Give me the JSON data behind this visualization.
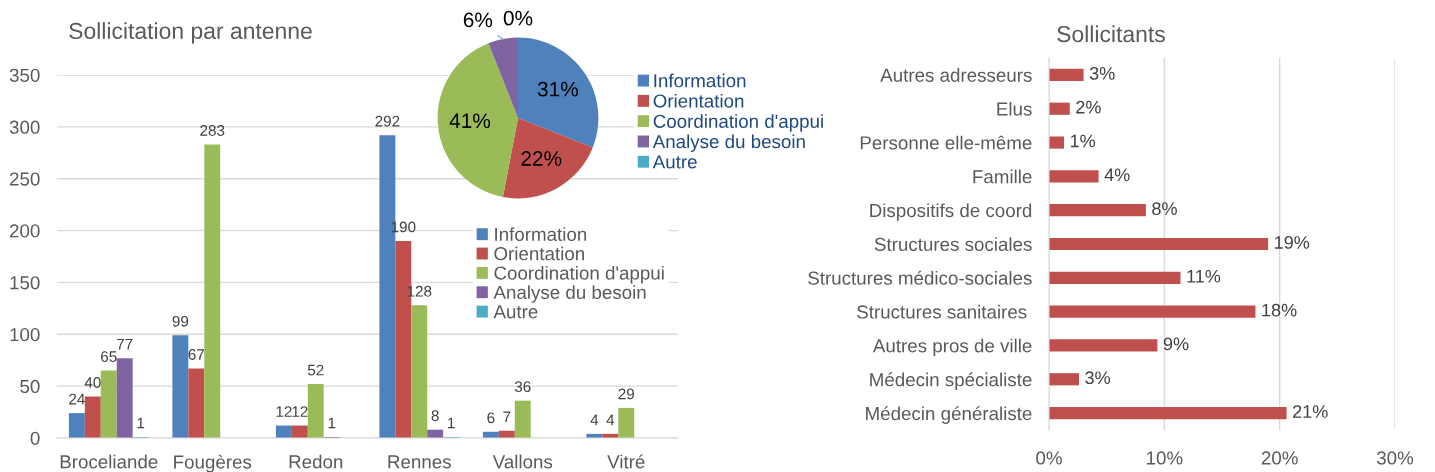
{
  "chart_data": [
    {
      "type": "bar",
      "title": "Sollicitation par antenne",
      "categories": [
        "Broceliande",
        "Fougères",
        "Redon",
        "Rennes",
        "Vallons",
        "Vitré"
      ],
      "series": [
        {
          "name": "Information",
          "color": "#4f81bd",
          "values": [
            24,
            99,
            12,
            292,
            6,
            4
          ]
        },
        {
          "name": "Orientation",
          "color": "#c0504d",
          "values": [
            40,
            67,
            12,
            190,
            7,
            4
          ]
        },
        {
          "name": "Coordination d'appui",
          "color": "#9bbb59",
          "values": [
            65,
            283,
            52,
            128,
            36,
            29
          ]
        },
        {
          "name": "Analyse du besoin",
          "color": "#8064a2",
          "values": [
            77,
            null,
            1,
            8,
            null,
            null
          ]
        },
        {
          "name": "Autre",
          "color": "#4bacc6",
          "values": [
            1,
            null,
            null,
            1,
            null,
            null
          ]
        }
      ],
      "ylim": [
        0,
        350
      ],
      "yticks": [
        0,
        50,
        100,
        150,
        200,
        250,
        300,
        350
      ],
      "grid": "y",
      "legend": "right",
      "data_labels": true
    },
    {
      "type": "pie",
      "categories": [
        "Information",
        "Orientation",
        "Coordination d'appui",
        "Analyse du besoin",
        "Autre"
      ],
      "values": [
        31,
        22,
        41,
        6,
        0
      ],
      "colors": [
        "#4f81bd",
        "#c0504d",
        "#9bbb59",
        "#8064a2",
        "#4bacc6"
      ],
      "value_labels": [
        "31%",
        "22%",
        "41%",
        "6%",
        "0%"
      ],
      "legend": "right"
    },
    {
      "type": "bar",
      "orientation": "horizontal",
      "title": "Sollicitants",
      "categories": [
        "Autres adresseurs",
        "Elus",
        "Personne elle-même",
        "Famille",
        "Dispositifs de coord",
        "Structures sociales",
        "Structures médico-sociales",
        "Structures sanitaires ",
        "Autres pros de ville",
        "Médecin spécialiste",
        "Médecin généraliste"
      ],
      "values": [
        3.0,
        1.8,
        1.3,
        4.3,
        8.4,
        19.0,
        11.4,
        17.9,
        9.4,
        2.6,
        20.6
      ],
      "color": "#c0504d",
      "value_labels": [
        "3%",
        "2%",
        "1%",
        "4%",
        "8%",
        "19%",
        "11%",
        "18%",
        "9%",
        "3%",
        "21%"
      ],
      "xlim": [
        0,
        30
      ],
      "xticks": [
        {
          "value": 0,
          "label": "0%"
        },
        {
          "value": 10,
          "label": "10%"
        },
        {
          "value": 20,
          "label": "20%"
        },
        {
          "value": 30,
          "label": "30%"
        }
      ],
      "grid": "x"
    }
  ]
}
